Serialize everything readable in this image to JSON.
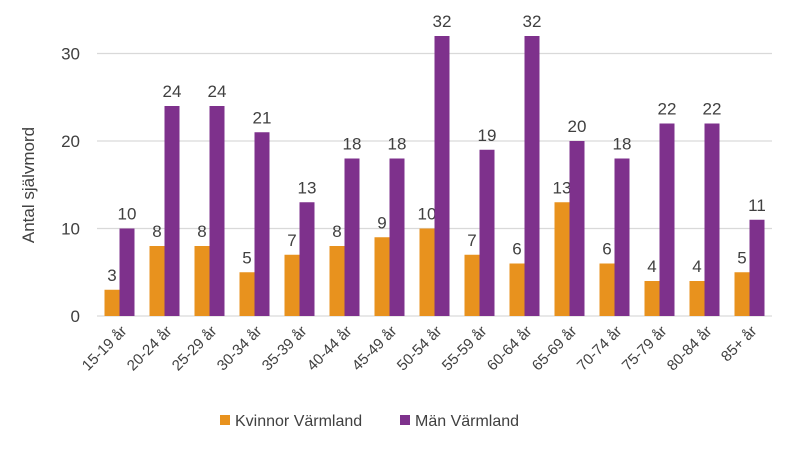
{
  "chart_data": {
    "type": "bar",
    "title": "",
    "xlabel": "",
    "ylabel": "Antal självmord",
    "ylim": [
      0,
      35
    ],
    "yticks": [
      0,
      10,
      20,
      30
    ],
    "grid": true,
    "legend_position": "bottom",
    "categories": [
      "15-19 år",
      "20-24 år",
      "25-29 år",
      "30-34 år",
      "35-39 år",
      "40-44 år",
      "45-49 år",
      "50-54 år",
      "55-59 år",
      "60-64 år",
      "65-69 år",
      "70-74 år",
      "75-79 år",
      "80-84 år",
      "85+ år"
    ],
    "series": [
      {
        "name": "Kvinnor Värmland",
        "color": "#E8921E",
        "values": [
          3,
          8,
          8,
          5,
          7,
          8,
          9,
          10,
          7,
          6,
          13,
          6,
          4,
          4,
          5
        ]
      },
      {
        "name": "Män Värmland",
        "color": "#7E318C",
        "values": [
          10,
          24,
          24,
          21,
          13,
          18,
          18,
          32,
          19,
          32,
          20,
          18,
          22,
          22,
          11
        ]
      }
    ]
  }
}
